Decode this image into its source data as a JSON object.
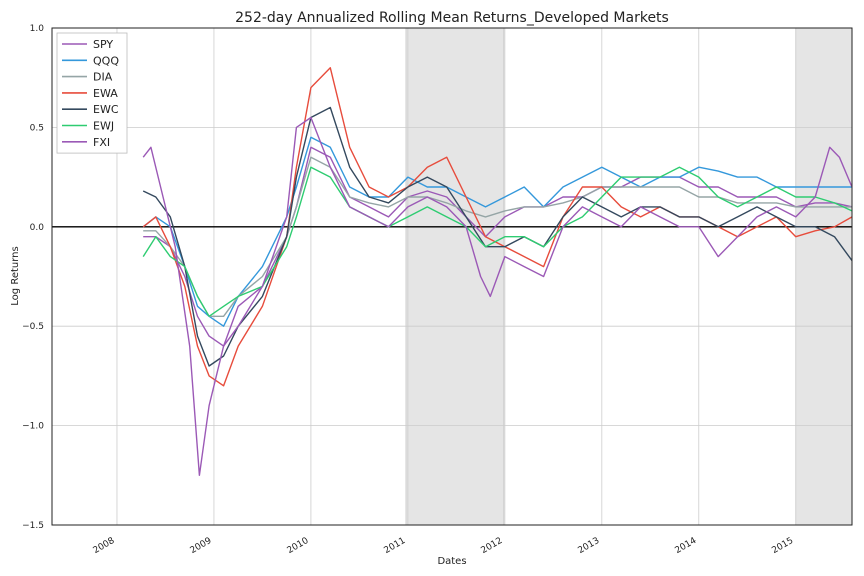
{
  "chart_data": {
    "type": "line",
    "title": "252-day Annualized Rolling Mean Returns_Developed Markets",
    "xlabel": "Dates",
    "ylabel": "Log Returns",
    "xlim": [
      2007.33,
      2015.58
    ],
    "ylim": [
      -1.5,
      1.0
    ],
    "x_ticks": [
      2008,
      2009,
      2010,
      2011,
      2012,
      2013,
      2014,
      2015
    ],
    "x_tick_labels": [
      "2008",
      "2009",
      "2010",
      "2011",
      "2012",
      "2013",
      "2014",
      "2015"
    ],
    "y_ticks": [
      -1.5,
      -1.0,
      -0.5,
      0.0,
      0.5,
      1.0
    ],
    "y_tick_labels": [
      "−1.5",
      "−1.0",
      "−0.5",
      "0.0",
      "0.5",
      "1.0"
    ],
    "grid": true,
    "legend_position": "top-left",
    "zero_line": 0.0,
    "shaded_regions": [
      [
        2010.98,
        2011.99
      ],
      [
        2015.0,
        2015.58
      ]
    ],
    "series": [
      {
        "name": "SPY",
        "color": "#9b59b6",
        "x": [
          2008.27,
          2008.4,
          2008.55,
          2008.7,
          2008.83,
          2008.95,
          2009.1,
          2009.25,
          2009.5,
          2009.75,
          2009.85,
          2010.0,
          2010.2,
          2010.4,
          2010.6,
          2010.8,
          2011.0,
          2011.2,
          2011.4,
          2011.6,
          2011.8,
          2012.0,
          2012.2,
          2012.4,
          2012.6,
          2012.8,
          2013.0,
          2013.2,
          2013.4,
          2013.6,
          2013.8,
          2014.0,
          2014.2,
          2014.4,
          2014.6,
          2014.8,
          2015.0,
          2015.2,
          2015.4,
          2015.58
        ],
        "y": [
          -0.05,
          -0.05,
          -0.1,
          -0.25,
          -0.45,
          -0.55,
          -0.6,
          -0.4,
          -0.3,
          -0.05,
          0.1,
          0.4,
          0.35,
          0.15,
          0.1,
          0.05,
          0.15,
          0.18,
          0.15,
          0.05,
          -0.05,
          0.05,
          0.1,
          0.1,
          0.15,
          0.15,
          0.2,
          0.2,
          0.25,
          0.25,
          0.25,
          0.2,
          0.2,
          0.15,
          0.15,
          0.15,
          0.1,
          0.12,
          0.12,
          0.1
        ]
      },
      {
        "name": "QQQ",
        "color": "#3498db",
        "x": [
          2008.27,
          2008.4,
          2008.55,
          2008.7,
          2008.83,
          2008.95,
          2009.1,
          2009.25,
          2009.5,
          2009.75,
          2009.85,
          2010.0,
          2010.2,
          2010.4,
          2010.6,
          2010.8,
          2011.0,
          2011.2,
          2011.4,
          2011.6,
          2011.8,
          2012.0,
          2012.2,
          2012.4,
          2012.6,
          2012.8,
          2013.0,
          2013.2,
          2013.4,
          2013.6,
          2013.8,
          2014.0,
          2014.2,
          2014.4,
          2014.6,
          2014.8,
          2015.0,
          2015.2,
          2015.4,
          2015.58
        ],
        "y": [
          0.0,
          0.05,
          0.0,
          -0.2,
          -0.4,
          -0.45,
          -0.5,
          -0.35,
          -0.2,
          0.05,
          0.2,
          0.45,
          0.4,
          0.2,
          0.15,
          0.15,
          0.25,
          0.2,
          0.2,
          0.15,
          0.1,
          0.15,
          0.2,
          0.1,
          0.2,
          0.25,
          0.3,
          0.25,
          0.2,
          0.25,
          0.25,
          0.3,
          0.28,
          0.25,
          0.25,
          0.2,
          0.2,
          0.2,
          0.2,
          0.2
        ]
      },
      {
        "name": "DIA",
        "color": "#95a5a6",
        "x": [
          2008.27,
          2008.4,
          2008.55,
          2008.7,
          2008.83,
          2008.95,
          2009.1,
          2009.25,
          2009.5,
          2009.75,
          2009.85,
          2010.0,
          2010.2,
          2010.4,
          2010.6,
          2010.8,
          2011.0,
          2011.2,
          2011.4,
          2011.6,
          2011.8,
          2012.0,
          2012.2,
          2012.4,
          2012.6,
          2012.8,
          2013.0,
          2013.2,
          2013.4,
          2013.6,
          2013.8,
          2014.0,
          2014.2,
          2014.4,
          2014.6,
          2014.8,
          2015.0,
          2015.2,
          2015.4,
          2015.58
        ],
        "y": [
          -0.02,
          -0.02,
          -0.1,
          -0.2,
          -0.35,
          -0.45,
          -0.45,
          -0.35,
          -0.25,
          -0.05,
          0.1,
          0.35,
          0.3,
          0.15,
          0.12,
          0.1,
          0.15,
          0.15,
          0.12,
          0.08,
          0.05,
          0.08,
          0.1,
          0.1,
          0.12,
          0.15,
          0.2,
          0.2,
          0.2,
          0.2,
          0.2,
          0.15,
          0.15,
          0.12,
          0.12,
          0.12,
          0.1,
          0.1,
          0.1,
          0.1
        ]
      },
      {
        "name": "EWA",
        "color": "#e74c3c",
        "x": [
          2008.27,
          2008.4,
          2008.55,
          2008.7,
          2008.83,
          2008.95,
          2009.1,
          2009.25,
          2009.5,
          2009.75,
          2009.85,
          2010.0,
          2010.2,
          2010.4,
          2010.6,
          2010.8,
          2011.0,
          2011.2,
          2011.4,
          2011.6,
          2011.8,
          2012.0,
          2012.2,
          2012.4,
          2012.6,
          2012.8,
          2013.0,
          2013.2,
          2013.4,
          2013.6,
          2013.8,
          2014.0,
          2014.2,
          2014.4,
          2014.6,
          2014.8,
          2015.0,
          2015.2,
          2015.4,
          2015.58
        ],
        "y": [
          0.0,
          0.05,
          -0.1,
          -0.3,
          -0.6,
          -0.75,
          -0.8,
          -0.6,
          -0.4,
          -0.05,
          0.3,
          0.7,
          0.8,
          0.4,
          0.2,
          0.15,
          0.2,
          0.3,
          0.35,
          0.15,
          -0.05,
          -0.1,
          -0.15,
          -0.2,
          0.05,
          0.2,
          0.2,
          0.1,
          0.05,
          0.1,
          0.05,
          0.05,
          0.0,
          -0.05,
          0.0,
          0.05,
          -0.05,
          -0.02,
          0.0,
          0.05
        ]
      },
      {
        "name": "EWC",
        "color": "#34495e",
        "x": [
          2008.27,
          2008.4,
          2008.55,
          2008.7,
          2008.83,
          2008.95,
          2009.1,
          2009.25,
          2009.5,
          2009.75,
          2009.85,
          2010.0,
          2010.2,
          2010.4,
          2010.6,
          2010.8,
          2011.0,
          2011.2,
          2011.4,
          2011.6,
          2011.8,
          2012.0,
          2012.2,
          2012.4,
          2012.6,
          2012.8,
          2013.0,
          2013.2,
          2013.4,
          2013.6,
          2013.8,
          2014.0,
          2014.2,
          2014.4,
          2014.6,
          2014.8,
          2015.0,
          2015.2,
          2015.4,
          2015.58
        ],
        "y": [
          0.18,
          0.15,
          0.05,
          -0.2,
          -0.55,
          -0.7,
          -0.65,
          -0.5,
          -0.35,
          -0.05,
          0.25,
          0.55,
          0.6,
          0.3,
          0.15,
          0.12,
          0.2,
          0.25,
          0.2,
          0.05,
          -0.1,
          -0.1,
          -0.05,
          -0.1,
          0.05,
          0.15,
          0.1,
          0.05,
          0.1,
          0.1,
          0.05,
          0.05,
          0.0,
          0.05,
          0.1,
          0.05,
          0.0,
          0.0,
          -0.05,
          -0.17
        ]
      },
      {
        "name": "EWJ",
        "color": "#2ecc71",
        "x": [
          2008.27,
          2008.4,
          2008.55,
          2008.7,
          2008.83,
          2008.95,
          2009.1,
          2009.25,
          2009.5,
          2009.75,
          2009.85,
          2010.0,
          2010.2,
          2010.4,
          2010.6,
          2010.8,
          2011.0,
          2011.2,
          2011.4,
          2011.6,
          2011.8,
          2012.0,
          2012.2,
          2012.4,
          2012.6,
          2012.8,
          2013.0,
          2013.2,
          2013.4,
          2013.6,
          2013.8,
          2014.0,
          2014.2,
          2014.4,
          2014.6,
          2014.8,
          2015.0,
          2015.2,
          2015.4,
          2015.58
        ],
        "y": [
          -0.15,
          -0.05,
          -0.15,
          -0.2,
          -0.35,
          -0.45,
          -0.4,
          -0.35,
          -0.3,
          -0.1,
          0.05,
          0.3,
          0.25,
          0.1,
          0.05,
          0.0,
          0.05,
          0.1,
          0.05,
          0.0,
          -0.1,
          -0.05,
          -0.05,
          -0.1,
          0.0,
          0.05,
          0.15,
          0.25,
          0.25,
          0.25,
          0.3,
          0.25,
          0.15,
          0.1,
          0.15,
          0.2,
          0.15,
          0.15,
          0.12,
          0.08
        ]
      },
      {
        "name": "FXI",
        "color": "#9b59b6",
        "x": [
          2008.27,
          2008.35,
          2008.45,
          2008.6,
          2008.75,
          2008.85,
          2008.95,
          2009.1,
          2009.25,
          2009.5,
          2009.75,
          2009.85,
          2010.0,
          2010.2,
          2010.4,
          2010.6,
          2010.8,
          2011.0,
          2011.2,
          2011.4,
          2011.6,
          2011.75,
          2011.85,
          2012.0,
          2012.2,
          2012.4,
          2012.6,
          2012.8,
          2013.0,
          2013.2,
          2013.4,
          2013.6,
          2013.8,
          2014.0,
          2014.2,
          2014.4,
          2014.6,
          2014.8,
          2015.0,
          2015.2,
          2015.35,
          2015.45,
          2015.58
        ],
        "y": [
          0.35,
          0.4,
          0.2,
          -0.1,
          -0.6,
          -1.25,
          -0.9,
          -0.6,
          -0.5,
          -0.3,
          0.05,
          0.5,
          0.55,
          0.3,
          0.1,
          0.05,
          0.0,
          0.1,
          0.15,
          0.1,
          0.0,
          -0.25,
          -0.35,
          -0.15,
          -0.2,
          -0.25,
          0.0,
          0.1,
          0.05,
          0.0,
          0.1,
          0.05,
          0.0,
          0.0,
          -0.15,
          -0.05,
          0.05,
          0.1,
          0.05,
          0.15,
          0.4,
          0.35,
          0.2
        ]
      }
    ]
  }
}
